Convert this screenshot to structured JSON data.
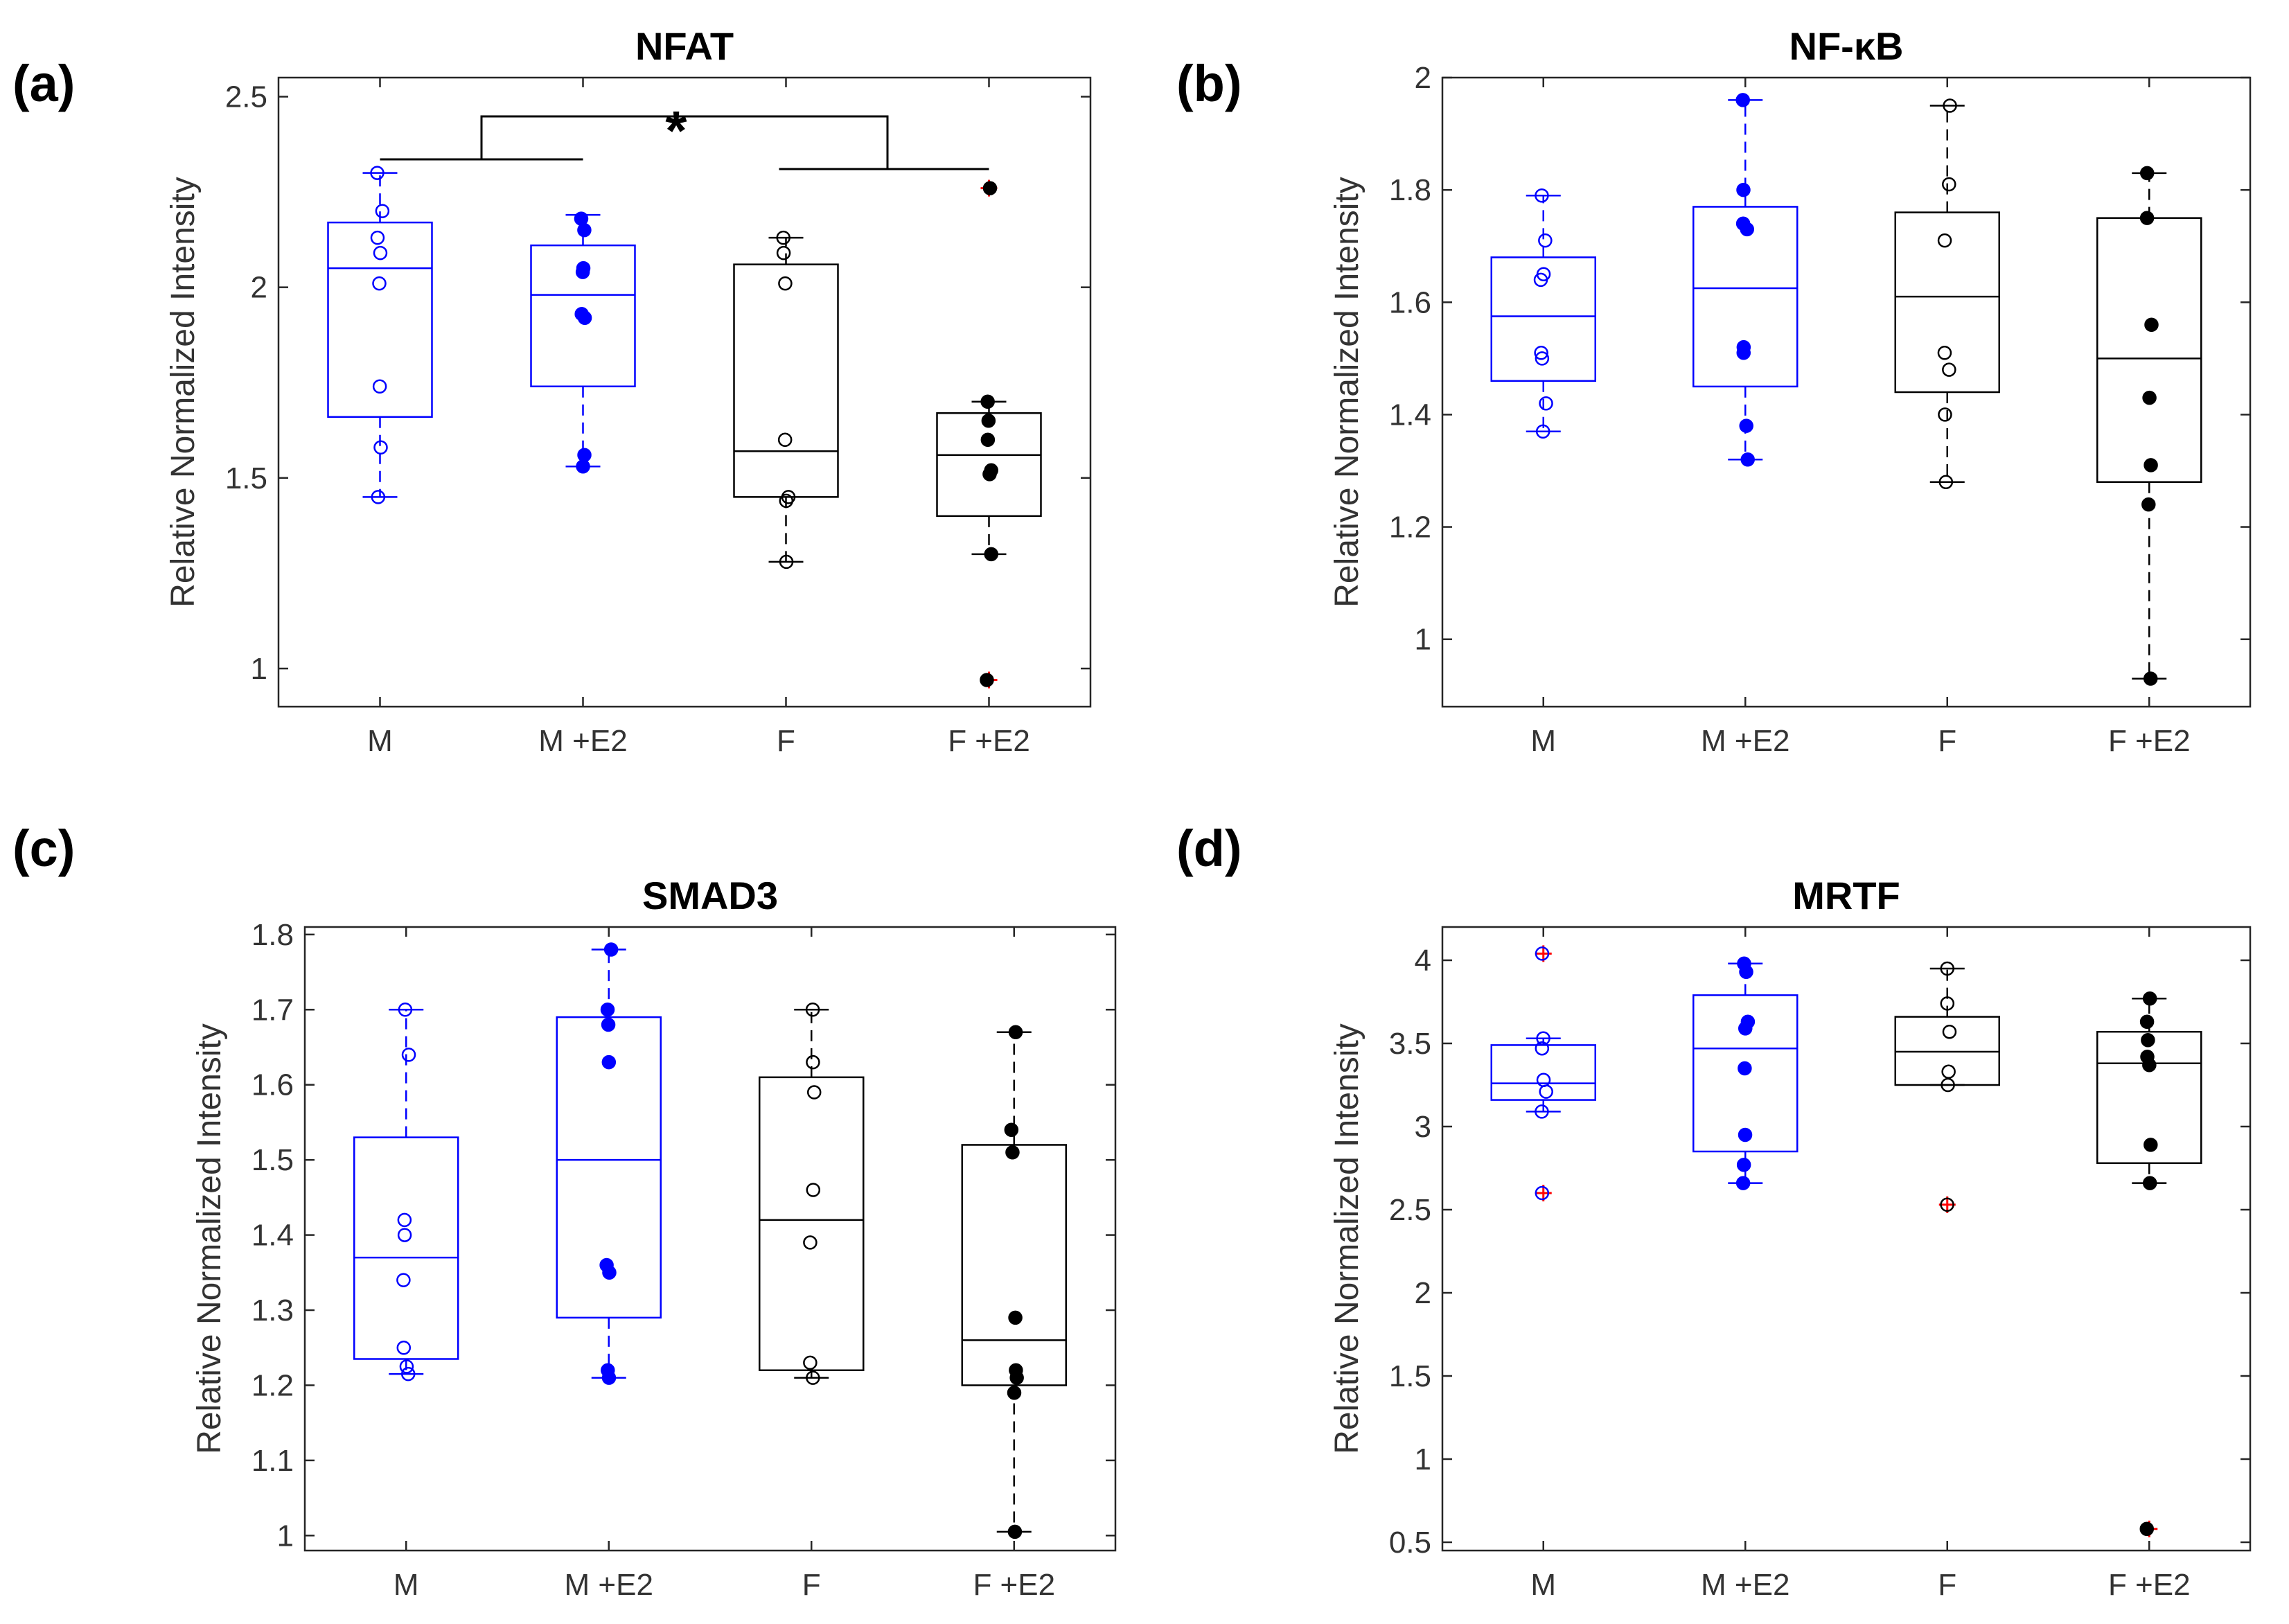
{
  "figure": {
    "panel_letters": [
      "(a)",
      "(b)",
      "(c)",
      "(d)"
    ],
    "significance_marker": "*"
  },
  "chart_data": [
    {
      "type": "box",
      "title": "NFAT",
      "xlabel": "",
      "ylabel": "Relative Normalized Intensity",
      "categories": [
        "M",
        "M +E2",
        "F",
        "F +E2"
      ],
      "ylim": [
        0.9,
        2.55
      ],
      "yticks": [
        1,
        1.5,
        2,
        2.5
      ],
      "ytick_labels": [
        "1",
        "1.5",
        "2",
        "2.5"
      ],
      "series": [
        {
          "name": "M",
          "color": "#0000ff",
          "marker": "open",
          "q1": 1.66,
          "median": 2.05,
          "q3": 2.17,
          "whisker_low": 1.45,
          "whisker_high": 2.3,
          "points": [
            2.3,
            2.2,
            2.13,
            2.09,
            2.01,
            1.74,
            1.58,
            1.45
          ],
          "outliers": []
        },
        {
          "name": "M +E2",
          "color": "#0000ff",
          "marker": "filled",
          "q1": 1.74,
          "median": 1.98,
          "q3": 2.11,
          "whisker_low": 1.53,
          "whisker_high": 2.19,
          "points": [
            2.18,
            2.15,
            2.05,
            2.04,
            1.93,
            1.92,
            1.56,
            1.53
          ],
          "outliers": []
        },
        {
          "name": "F",
          "color": "#000000",
          "marker": "open",
          "q1": 1.45,
          "median": 1.57,
          "q3": 2.06,
          "whisker_low": 1.28,
          "whisker_high": 2.13,
          "points": [
            2.13,
            2.09,
            2.01,
            1.6,
            1.45,
            1.44,
            1.28
          ],
          "outliers": []
        },
        {
          "name": "F +E2",
          "color": "#000000",
          "marker": "filled",
          "q1": 1.4,
          "median": 1.56,
          "q3": 1.67,
          "whisker_low": 1.3,
          "whisker_high": 1.7,
          "points": [
            1.7,
            1.65,
            1.6,
            1.52,
            1.51,
            1.3
          ],
          "outliers": [
            2.26,
            0.97
          ]
        }
      ],
      "significance": {
        "marker": "*",
        "left_pair": [
          "M",
          "M +E2"
        ],
        "right_pair": [
          "F",
          "F +E2"
        ]
      }
    },
    {
      "type": "box",
      "title": "NF-κB",
      "xlabel": "",
      "ylabel": "Relative Normalized Intensity",
      "categories": [
        "M",
        "M +E2",
        "F",
        "F +E2"
      ],
      "ylim": [
        0.88,
        2.0
      ],
      "yticks": [
        1,
        1.2,
        1.4,
        1.6,
        1.8,
        2
      ],
      "ytick_labels": [
        "1",
        "1.2",
        "1.4",
        "1.6",
        "1.8",
        "2"
      ],
      "series": [
        {
          "name": "M",
          "color": "#0000ff",
          "marker": "open",
          "q1": 1.46,
          "median": 1.575,
          "q3": 1.68,
          "whisker_low": 1.37,
          "whisker_high": 1.79,
          "points": [
            1.79,
            1.71,
            1.65,
            1.64,
            1.51,
            1.5,
            1.42,
            1.37
          ],
          "outliers": []
        },
        {
          "name": "M +E2",
          "color": "#0000ff",
          "marker": "filled",
          "q1": 1.45,
          "median": 1.625,
          "q3": 1.77,
          "whisker_low": 1.32,
          "whisker_high": 1.96,
          "points": [
            1.96,
            1.8,
            1.74,
            1.73,
            1.52,
            1.51,
            1.38,
            1.32
          ],
          "outliers": []
        },
        {
          "name": "F",
          "color": "#000000",
          "marker": "open",
          "q1": 1.44,
          "median": 1.61,
          "q3": 1.76,
          "whisker_low": 1.28,
          "whisker_high": 1.95,
          "points": [
            1.95,
            1.81,
            1.71,
            1.51,
            1.48,
            1.4,
            1.28
          ],
          "outliers": []
        },
        {
          "name": "F +E2",
          "color": "#000000",
          "marker": "filled",
          "q1": 1.28,
          "median": 1.5,
          "q3": 1.75,
          "whisker_low": 0.93,
          "whisker_high": 1.83,
          "points": [
            1.83,
            1.75,
            1.56,
            1.43,
            1.31,
            1.24,
            0.93
          ],
          "outliers": []
        }
      ]
    },
    {
      "type": "box",
      "title": "SMAD3",
      "xlabel": "",
      "ylabel": "Relative Normalized Intensity",
      "categories": [
        "M",
        "M +E2",
        "F",
        "F +E2"
      ],
      "ylim": [
        0.98,
        1.81
      ],
      "yticks": [
        1,
        1.1,
        1.2,
        1.3,
        1.4,
        1.5,
        1.6,
        1.7,
        1.8
      ],
      "ytick_labels": [
        "1",
        "1.1",
        "1.2",
        "1.3",
        "1.4",
        "1.5",
        "1.6",
        "1.7",
        "1.8"
      ],
      "series": [
        {
          "name": "M",
          "color": "#0000ff",
          "marker": "open",
          "q1": 1.235,
          "median": 1.37,
          "q3": 1.53,
          "whisker_low": 1.215,
          "whisker_high": 1.7,
          "points": [
            1.7,
            1.64,
            1.42,
            1.4,
            1.34,
            1.25,
            1.225,
            1.215
          ],
          "outliers": []
        },
        {
          "name": "M +E2",
          "color": "#0000ff",
          "marker": "filled",
          "q1": 1.29,
          "median": 1.5,
          "q3": 1.69,
          "whisker_low": 1.21,
          "whisker_high": 1.78,
          "points": [
            1.78,
            1.7,
            1.68,
            1.63,
            1.36,
            1.35,
            1.22,
            1.21
          ],
          "outliers": []
        },
        {
          "name": "F",
          "color": "#000000",
          "marker": "open",
          "q1": 1.22,
          "median": 1.42,
          "q3": 1.61,
          "whisker_low": 1.21,
          "whisker_high": 1.7,
          "points": [
            1.7,
            1.63,
            1.59,
            1.46,
            1.39,
            1.23,
            1.21
          ],
          "outliers": []
        },
        {
          "name": "F +E2",
          "color": "#000000",
          "marker": "filled",
          "q1": 1.2,
          "median": 1.26,
          "q3": 1.52,
          "whisker_low": 1.005,
          "whisker_high": 1.67,
          "points": [
            1.67,
            1.54,
            1.51,
            1.29,
            1.22,
            1.21,
            1.19,
            1.005
          ],
          "outliers": []
        }
      ]
    },
    {
      "type": "box",
      "title": "MRTF",
      "xlabel": "",
      "ylabel": "Relative Normalized Intensity",
      "categories": [
        "M",
        "M +E2",
        "F",
        "F +E2"
      ],
      "ylim": [
        0.45,
        4.2
      ],
      "yticks": [
        0.5,
        1,
        1.5,
        2,
        2.5,
        3,
        3.5,
        4
      ],
      "ytick_labels": [
        "0.5",
        "1",
        "1.5",
        "2",
        "2.5",
        "3",
        "3.5",
        "4"
      ],
      "series": [
        {
          "name": "M",
          "color": "#0000ff",
          "marker": "open",
          "q1": 3.16,
          "median": 3.26,
          "q3": 3.49,
          "whisker_low": 3.09,
          "whisker_high": 3.53,
          "points": [
            3.53,
            3.47,
            3.28,
            3.21,
            3.09
          ],
          "outliers": [
            4.04,
            2.6
          ]
        },
        {
          "name": "M +E2",
          "color": "#0000ff",
          "marker": "filled",
          "q1": 2.85,
          "median": 3.47,
          "q3": 3.79,
          "whisker_low": 2.66,
          "whisker_high": 3.98,
          "points": [
            3.98,
            3.93,
            3.63,
            3.59,
            3.35,
            2.95,
            2.77,
            2.66
          ],
          "outliers": []
        },
        {
          "name": "F",
          "color": "#000000",
          "marker": "open",
          "q1": 3.25,
          "median": 3.45,
          "q3": 3.66,
          "whisker_low": 3.25,
          "whisker_high": 3.95,
          "points": [
            3.95,
            3.74,
            3.57,
            3.33,
            3.25
          ],
          "outliers": [
            2.53
          ]
        },
        {
          "name": "F +E2",
          "color": "#000000",
          "marker": "filled",
          "q1": 2.78,
          "median": 3.38,
          "q3": 3.57,
          "whisker_low": 2.66,
          "whisker_high": 3.77,
          "points": [
            3.77,
            3.63,
            3.52,
            3.42,
            3.37,
            2.89,
            2.66
          ],
          "outliers": [
            0.58
          ]
        }
      ]
    }
  ]
}
